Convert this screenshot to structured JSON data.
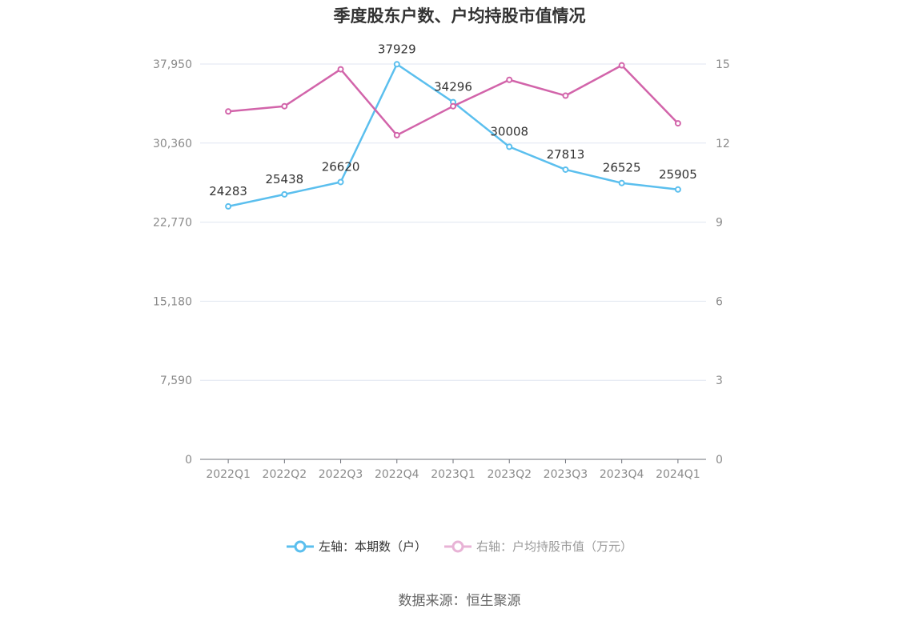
{
  "chart_data": {
    "type": "line",
    "title": "季度股东户数、户均持股市值情况",
    "categories": [
      "2022Q1",
      "2022Q2",
      "2022Q3",
      "2022Q4",
      "2023Q1",
      "2023Q2",
      "2023Q3",
      "2023Q4",
      "2024Q1"
    ],
    "y_left": {
      "ticks": [
        "0",
        "7,590",
        "15,180",
        "22,770",
        "30,360",
        "37,950"
      ],
      "min": 0,
      "max": 37950
    },
    "y_right": {
      "ticks": [
        "0",
        "3",
        "6",
        "9",
        "12",
        "15"
      ],
      "min": 0,
      "max": 15
    },
    "series": [
      {
        "name": "左轴：本期数（户）",
        "axis": "left",
        "color": "#5bbfee",
        "values": [
          24283,
          25438,
          26620,
          37929,
          34296,
          30008,
          27813,
          26525,
          25905
        ],
        "labels": [
          "24283",
          "25438",
          "26620",
          "37929",
          "34296",
          "30008",
          "27813",
          "26525",
          "25905"
        ]
      },
      {
        "name": "右轴：户均持股市值（万元）",
        "axis": "right",
        "color": "#d264aa",
        "values": [
          13.2,
          13.4,
          14.8,
          12.3,
          13.4,
          14.4,
          13.8,
          14.95,
          12.75
        ]
      }
    ],
    "grid": true,
    "legend_position": "bottom"
  },
  "source": "数据来源：恒生聚源"
}
